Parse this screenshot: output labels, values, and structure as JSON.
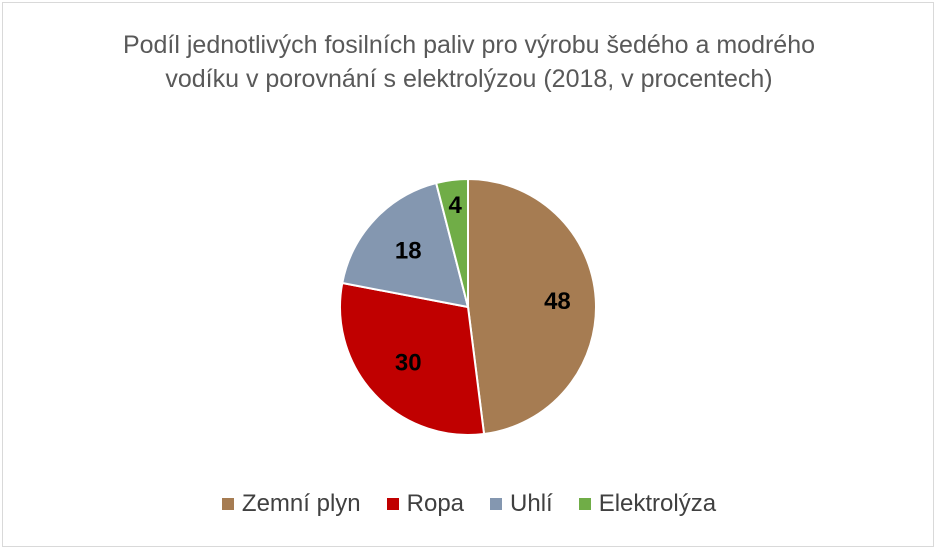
{
  "chart_data": {
    "type": "pie",
    "title": "Podíl jednotlivých fosilních paliv pro výrobu šedého a modrého vodíku v porovnání s elektrolýzou (2018, v procentech)",
    "categories": [
      "Zemní plyn",
      "Ropa",
      "Uhlí",
      "Elektrolýza"
    ],
    "values": [
      48,
      30,
      18,
      4
    ],
    "data_labels": [
      "48",
      "30",
      "18",
      "4"
    ],
    "colors": [
      "#a67c52",
      "#c00000",
      "#8497b0",
      "#70ad47"
    ],
    "legend_position": "bottom"
  }
}
